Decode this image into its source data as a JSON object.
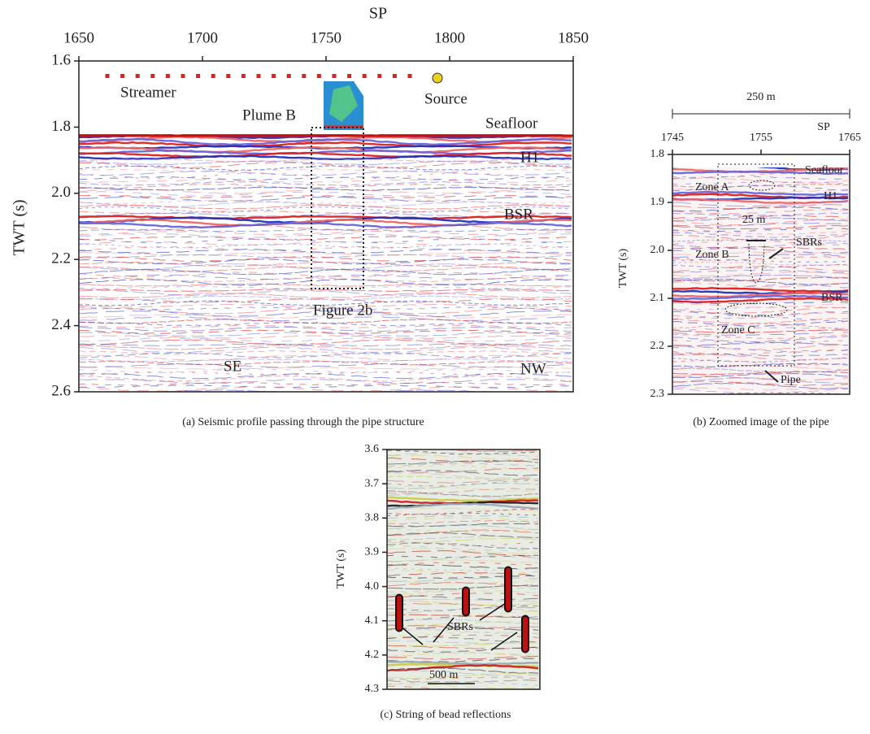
{
  "panels": [
    {
      "caption": "(a) Seismic profile passing through the pipe structure",
      "x_axis_label": "SP",
      "xlim": [
        1650,
        1850
      ],
      "xticks": [
        1650,
        1700,
        1750,
        1800,
        1850
      ],
      "y_axis_label": "TWT (s)",
      "ylim": [
        1.6,
        2.6
      ],
      "yticks": [
        1.6,
        1.8,
        {
          "value": 2,
          "label": "2.0"
        },
        2.2,
        2.4,
        2.6
      ],
      "annotations": [
        "Streamer",
        "Plume B",
        "Source",
        "Seafloor",
        "H1",
        "BSR",
        "Figure 2b",
        "SE",
        "NW"
      ]
    },
    {
      "caption": "(b) Zoomed image of the pipe",
      "scale_label": "250 m",
      "x_axis_label": "SP",
      "xlim": [
        1745,
        1765
      ],
      "xticks": [
        1745,
        1755,
        1765
      ],
      "y_axis_label": "TWT (s)",
      "ylim": [
        1.8,
        2.3
      ],
      "yticks": [
        1.8,
        1.9,
        {
          "value": 2,
          "label": "2.0"
        },
        2.1,
        2.2,
        2.3
      ],
      "annotations": [
        "Seafloor",
        "Zone A",
        "H1",
        "25 m",
        "SBRs",
        "Zone B",
        "BSR",
        "Zone C",
        "Pipe"
      ]
    },
    {
      "caption": "(c) String of bead reflections",
      "y_axis_label": "TWT (s)",
      "ylim": [
        3.6,
        4.3
      ],
      "yticks": [
        3.6,
        3.7,
        3.8,
        3.9,
        {
          "value": 4,
          "label": "4.0"
        },
        4.1,
        4.2,
        4.3
      ],
      "annotations": [
        "SBRs",
        "500 m"
      ]
    }
  ]
}
